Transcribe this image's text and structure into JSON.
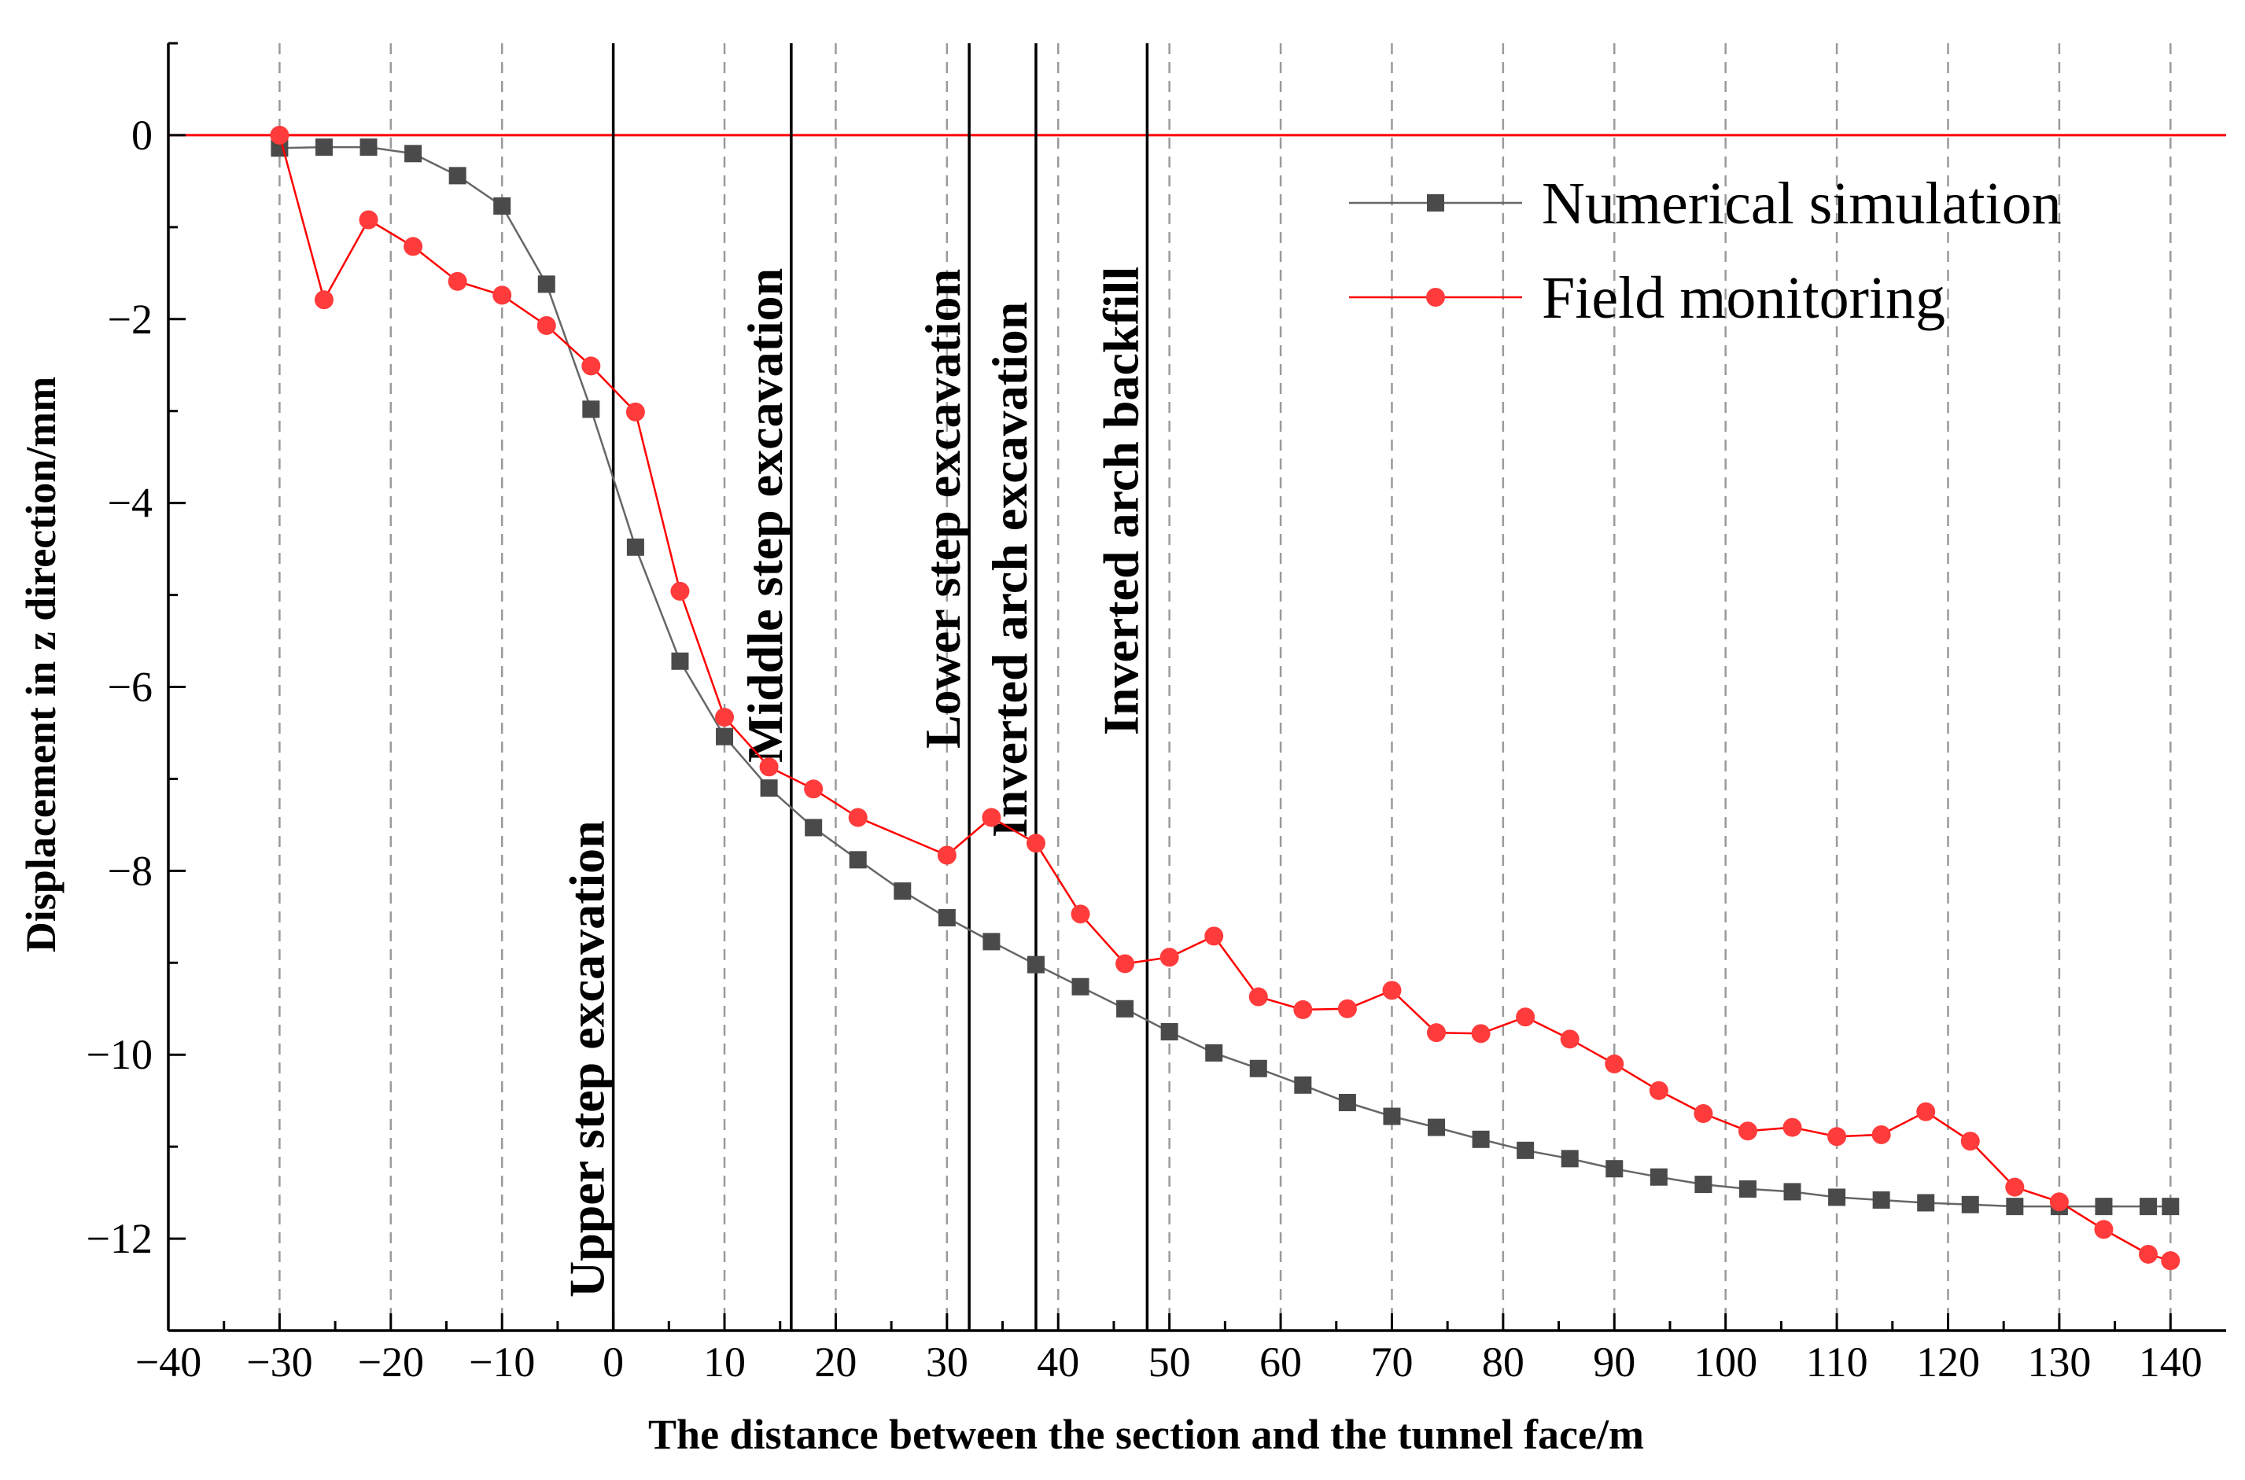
{
  "chart_data": {
    "type": "line",
    "xlabel": "The distance between the section and the tunnel face/m",
    "ylabel": "Displacement in z direction/mm",
    "xlim": [
      -40,
      145
    ],
    "ylim": [
      -13,
      1
    ],
    "x_ticks": [
      -40,
      -30,
      -20,
      -10,
      0,
      10,
      20,
      30,
      40,
      50,
      60,
      70,
      80,
      90,
      100,
      110,
      120,
      130,
      140
    ],
    "y_ticks": [
      0,
      -2,
      -4,
      -6,
      -8,
      -10,
      -12
    ],
    "grid": "vertical dashed at x ticks",
    "reference_line": {
      "y": 0,
      "color": "#ff0000"
    },
    "stage_lines": [
      {
        "x": 0,
        "label": "Upper step excavation"
      },
      {
        "x": 16,
        "label": "Middle step excavation"
      },
      {
        "x": 32,
        "label": "Lower step excavation"
      },
      {
        "x": 38,
        "label": "Inverted arch excavation"
      },
      {
        "x": 48,
        "label": "Inverted arch backfill"
      }
    ],
    "legend_position": "top-right",
    "series": [
      {
        "name": "Numerical simulation",
        "marker": "square",
        "color": "#4a4a4a",
        "line_color": "#666666",
        "x": [
          -30,
          -26,
          -22,
          -18,
          -14,
          -10,
          -6,
          -2,
          2,
          6,
          10,
          14,
          18,
          22,
          26,
          30,
          34,
          38,
          42,
          46,
          50,
          54,
          58,
          62,
          66,
          70,
          74,
          78,
          82,
          86,
          90,
          94,
          98,
          102,
          106,
          110,
          114,
          118,
          122,
          126,
          130,
          134,
          138,
          140
        ],
        "values": [
          -0.14,
          -0.13,
          -0.13,
          -0.2,
          -0.44,
          -0.77,
          -1.62,
          -2.98,
          -4.48,
          -5.72,
          -6.54,
          -7.1,
          -7.53,
          -7.88,
          -8.22,
          -8.51,
          -8.77,
          -9.02,
          -9.26,
          -9.5,
          -9.75,
          -9.98,
          -10.15,
          -10.33,
          -10.52,
          -10.67,
          -10.79,
          -10.92,
          -11.04,
          -11.13,
          -11.24,
          -11.33,
          -11.41,
          -11.46,
          -11.49,
          -11.55,
          -11.58,
          -11.61,
          -11.63,
          -11.65,
          -11.65,
          -11.65,
          -11.65,
          -11.65
        ]
      },
      {
        "name": "Field monitoring",
        "marker": "circle",
        "color": "#ff3b3b",
        "line_color": "#ff0000",
        "x": [
          -30,
          -26,
          -22,
          -18,
          -14,
          -10,
          -6,
          -2,
          2,
          6,
          10,
          14,
          18,
          22,
          30,
          34,
          38,
          42,
          46,
          50,
          54,
          58,
          62,
          66,
          70,
          74,
          78,
          82,
          86,
          90,
          94,
          98,
          102,
          106,
          110,
          114,
          118,
          122,
          126,
          130,
          134,
          138,
          140
        ],
        "values": [
          0.0,
          -1.79,
          -0.92,
          -1.21,
          -1.59,
          -1.74,
          -2.07,
          -2.51,
          -3.01,
          -4.96,
          -6.33,
          -6.87,
          -7.11,
          -7.42,
          -7.83,
          -7.42,
          -7.7,
          -8.47,
          -9.01,
          -8.94,
          -8.71,
          -9.37,
          -9.51,
          -9.5,
          -9.3,
          -9.76,
          -9.77,
          -9.59,
          -9.83,
          -10.1,
          -10.39,
          -10.64,
          -10.83,
          -10.79,
          -10.89,
          -10.87,
          -10.62,
          -10.94,
          -11.44,
          -11.6,
          -11.9,
          -12.17,
          -12.24
        ]
      }
    ]
  }
}
